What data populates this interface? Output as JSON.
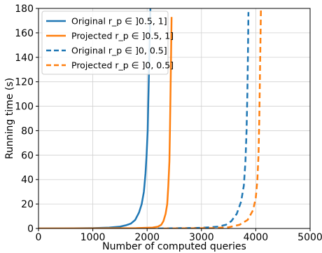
{
  "chart_data": {
    "type": "line",
    "xlabel": "Number of computed queries",
    "ylabel": "Running time (s)",
    "xlim": [
      0,
      5000
    ],
    "ylim": [
      0,
      180
    ],
    "xticks": [
      0,
      1000,
      2000,
      3000,
      4000,
      5000
    ],
    "yticks": [
      0,
      20,
      40,
      60,
      80,
      100,
      120,
      140,
      160,
      180
    ],
    "grid": true,
    "legend_position": "top-left",
    "series": [
      {
        "name": "Original",
        "range_label": "r_p ∈ ]0.5, 1]",
        "color": "#1f77b4",
        "dash": "solid",
        "points": [
          [
            0,
            0
          ],
          [
            500,
            0.1
          ],
          [
            1000,
            0.3
          ],
          [
            1300,
            0.7
          ],
          [
            1500,
            1.5
          ],
          [
            1600,
            2.5
          ],
          [
            1700,
            4
          ],
          [
            1780,
            7
          ],
          [
            1850,
            13
          ],
          [
            1900,
            20
          ],
          [
            1940,
            30
          ],
          [
            1970,
            45
          ],
          [
            1990,
            60
          ],
          [
            2010,
            80
          ],
          [
            2020,
            100
          ],
          [
            2030,
            120
          ],
          [
            2040,
            140
          ],
          [
            2050,
            160
          ],
          [
            2060,
            180
          ]
        ]
      },
      {
        "name": "Projected",
        "range_label": "r_p ∈ ]0.5, 1]",
        "color": "#ff7f0e",
        "dash": "solid",
        "points": [
          [
            0,
            0
          ],
          [
            1000,
            0.1
          ],
          [
            1800,
            0.3
          ],
          [
            2100,
            0.7
          ],
          [
            2200,
            1.5
          ],
          [
            2260,
            3
          ],
          [
            2300,
            6
          ],
          [
            2340,
            12
          ],
          [
            2370,
            20
          ],
          [
            2390,
            35
          ],
          [
            2410,
            55
          ],
          [
            2420,
            80
          ],
          [
            2430,
            110
          ],
          [
            2440,
            140
          ],
          [
            2450,
            173
          ]
        ]
      },
      {
        "name": "Original",
        "range_label": "r_p ∈ ]0, 0.5]",
        "color": "#1f77b4",
        "dash": "dashed",
        "points": [
          [
            2200,
            0
          ],
          [
            3000,
            0.5
          ],
          [
            3300,
            1.5
          ],
          [
            3450,
            3
          ],
          [
            3550,
            6
          ],
          [
            3650,
            12
          ],
          [
            3730,
            22
          ],
          [
            3780,
            35
          ],
          [
            3810,
            55
          ],
          [
            3830,
            80
          ],
          [
            3845,
            110
          ],
          [
            3855,
            140
          ],
          [
            3865,
            177
          ]
        ]
      },
      {
        "name": "Projected",
        "range_label": "r_p ∈ ]0, 0.5]",
        "color": "#ff7f0e",
        "dash": "dashed",
        "points": [
          [
            2300,
            0
          ],
          [
            3200,
            0.3
          ],
          [
            3500,
            1
          ],
          [
            3700,
            3
          ],
          [
            3850,
            7
          ],
          [
            3950,
            15
          ],
          [
            4000,
            25
          ],
          [
            4030,
            40
          ],
          [
            4050,
            60
          ],
          [
            4065,
            90
          ],
          [
            4075,
            120
          ],
          [
            4085,
            150
          ],
          [
            4095,
            180
          ]
        ]
      }
    ]
  }
}
